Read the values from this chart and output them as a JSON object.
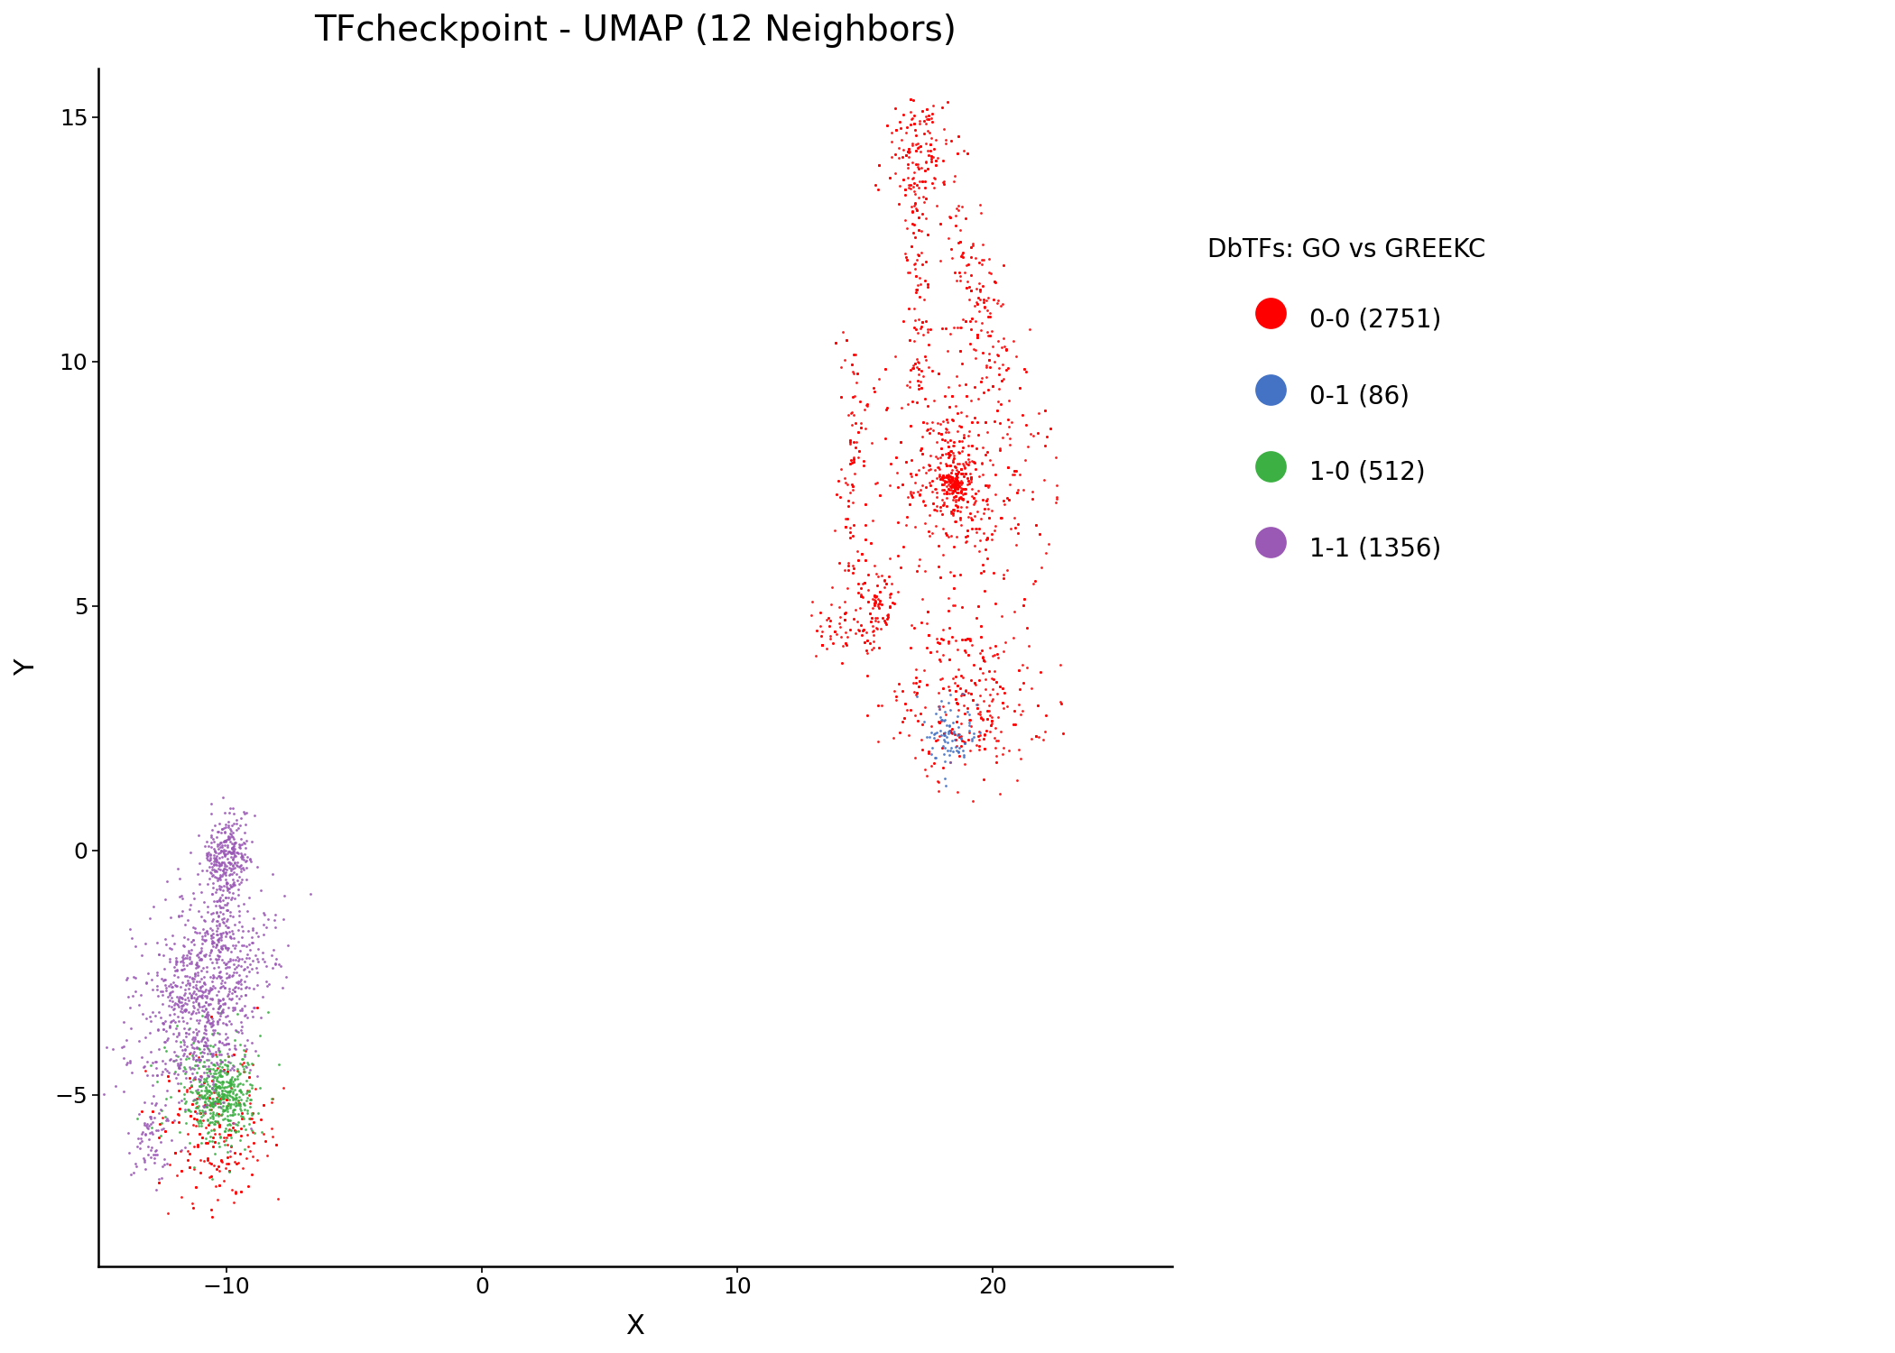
{
  "title": "TFcheckpoint - UMAP (12 Neighbors)",
  "xlabel": "X",
  "ylabel": "Y",
  "xlim": [
    -15,
    27
  ],
  "ylim": [
    -8.5,
    16
  ],
  "legend_title": "DbTFs: GO vs GREEKC",
  "groups": [
    {
      "label": "0-0 (2751)",
      "color": "#FF0000",
      "n": 2751
    },
    {
      "label": "0-1 (86)",
      "color": "#4472C4",
      "n": 86
    },
    {
      "label": "1-0 (512)",
      "color": "#3CB043",
      "n": 512
    },
    {
      "label": "1-1 (1356)",
      "color": "#9B59B6",
      "n": 1356
    }
  ],
  "background_color": "#FFFFFF",
  "seed": 42,
  "point_size": 4.0,
  "point_alpha": 0.9,
  "title_fontsize": 28,
  "label_fontsize": 22,
  "tick_fontsize": 18,
  "legend_title_fontsize": 20,
  "legend_fontsize": 20
}
